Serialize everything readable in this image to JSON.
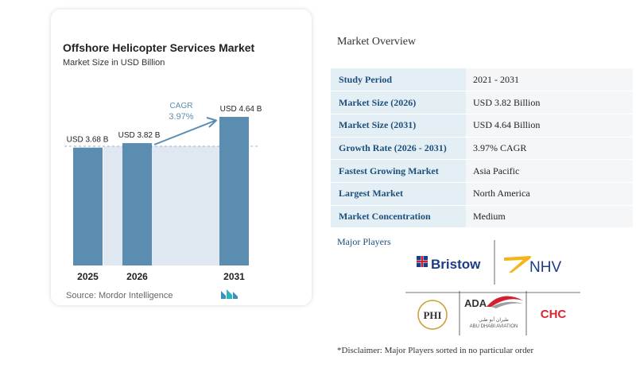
{
  "card": {
    "title": "Offshore Helicopter Services Market",
    "subtitle": "Market Size in USD Billion",
    "source": "Source: Mordor Intelligence"
  },
  "chart_data": {
    "type": "bar",
    "title": "Offshore Helicopter Services Market",
    "subtitle": "Market Size in USD Billion",
    "categories": [
      "2025",
      "2026",
      "2031"
    ],
    "values": [
      3.68,
      3.82,
      4.64
    ],
    "data_labels": [
      "USD 3.68 B",
      "USD 3.82 B",
      "USD 4.64 B"
    ],
    "cagr_label": "CAGR",
    "cagr_value": "3.97%",
    "bar_color": "#5b8db0",
    "xlabel": "",
    "ylabel": "",
    "grid": false
  },
  "overview": {
    "title": "Market Overview",
    "rows": [
      {
        "key": "Study Period",
        "value": "2021 - 2031"
      },
      {
        "key": "Market Size (2026)",
        "value": "USD 3.82 Billion"
      },
      {
        "key": "Market Size (2031)",
        "value": "USD 4.64 Billion"
      },
      {
        "key": "Growth Rate (2026 - 2031)",
        "value": "3.97% CAGR"
      },
      {
        "key": "Fastest Growing Market",
        "value": "Asia Pacific"
      },
      {
        "key": "Largest Market",
        "value": "North America"
      },
      {
        "key": "Market Concentration",
        "value": "Medium"
      }
    ]
  },
  "players": {
    "title": "Major Players",
    "logos": [
      "Bristow",
      "NHV",
      "PHI",
      "ADA",
      "CHC"
    ],
    "ada_arabic": "طيران أبو ظبي",
    "ada_caption": "ABU DHABI AVIATION",
    "disclaimer": "*Disclaimer: Major Players sorted in no particular order"
  },
  "colors": {
    "bar": "#5b8db0",
    "accent_blue": "#1d4f7c",
    "key_bg": "#e4eff5",
    "value_bg": "#f5f6f7",
    "arrow": "#5b8db0",
    "nhv_yellow": "#f4b41a",
    "chc_red": "#d7262f",
    "ada_red": "#d22030"
  }
}
